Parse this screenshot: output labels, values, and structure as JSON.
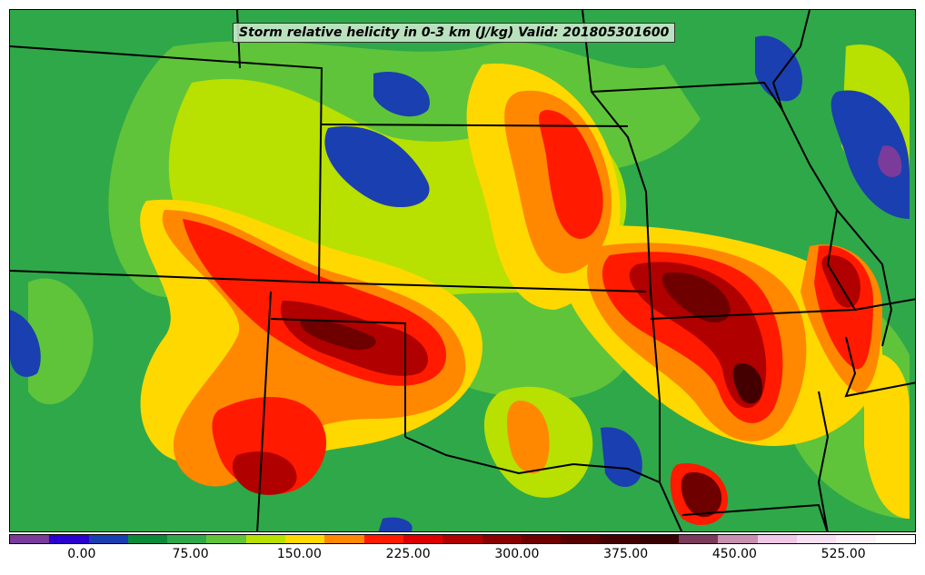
{
  "title": "Storm relative helicity in 0-3 km (J/kg) Valid: 201805301600",
  "colorbar": {
    "colors": [
      "#7a3b9a",
      "#2a00cf",
      "#1a3fb0",
      "#0b8a3a",
      "#2fa84a",
      "#5fc43a",
      "#b8e000",
      "#ffd800",
      "#ff8800",
      "#ff1a00",
      "#dc0000",
      "#b00000",
      "#8a0000",
      "#6e0000",
      "#580000",
      "#440000",
      "#380000",
      "#7a3a5a",
      "#c890b0",
      "#f0c8e8",
      "#f8e0f4",
      "#fcf0fa",
      "#ffffff"
    ],
    "tick_labels": [
      "0.00",
      "75.00",
      "150.00",
      "225.00",
      "300.00",
      "375.00",
      "450.00",
      "525.00"
    ],
    "tick_values": [
      0,
      75,
      150,
      225,
      300,
      375,
      450,
      525
    ],
    "range": [
      -50,
      575
    ]
  },
  "colors": {
    "background_green": "#2fa84a",
    "border_line": "#000000"
  }
}
